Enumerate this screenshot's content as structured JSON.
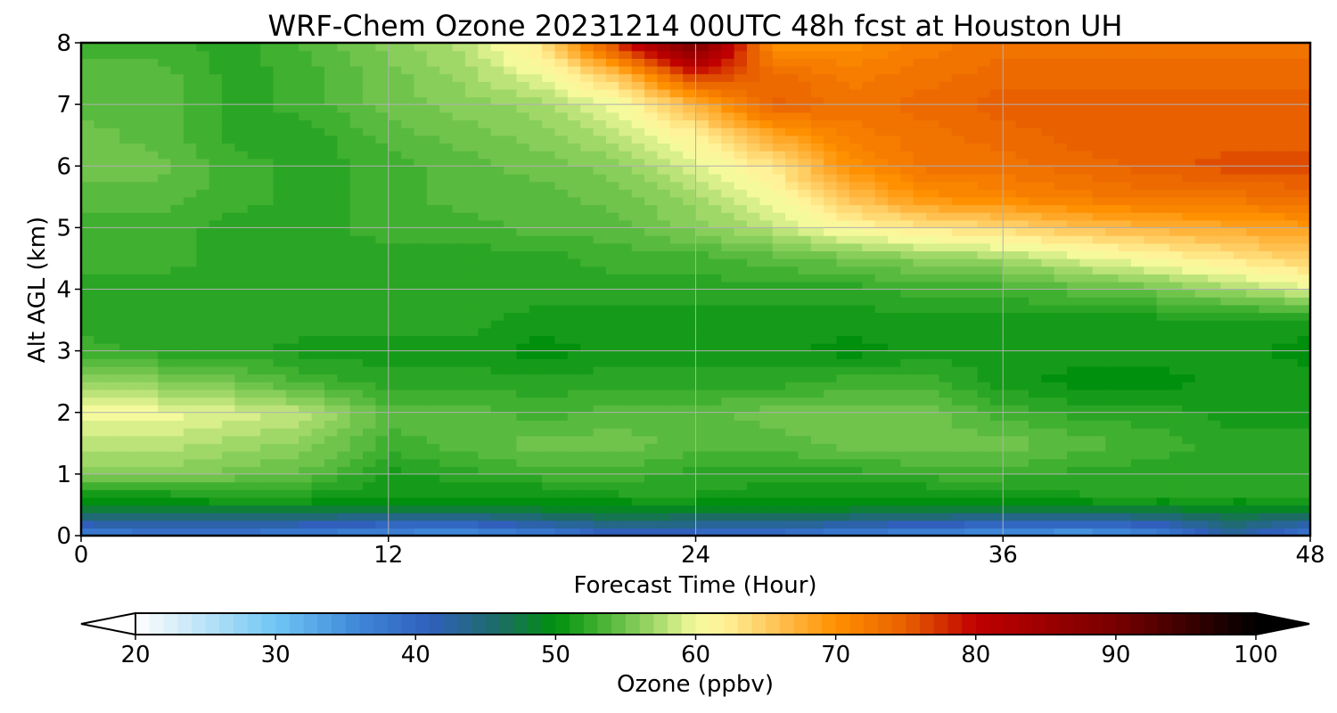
{
  "chart_data": {
    "type": "heatmap",
    "title": "WRF-Chem Ozone  20231214 00UTC 48h fcst at Houston UH",
    "xlabel": "Forecast Time (Hour)",
    "ylabel": "Alt AGL (km)",
    "xlim": [
      0,
      48
    ],
    "ylim": [
      0,
      8
    ],
    "x_ticks": [
      "0",
      "12",
      "24",
      "36",
      "48"
    ],
    "y_ticks": [
      "0",
      "1",
      "2",
      "3",
      "4",
      "5",
      "6",
      "7",
      "8"
    ],
    "grid": true,
    "x": [
      0,
      3,
      6,
      9,
      12,
      15,
      18,
      21,
      24,
      27,
      30,
      33,
      36,
      39,
      42,
      45,
      48
    ],
    "y": [
      0,
      0.25,
      0.5,
      0.75,
      1,
      1.5,
      2,
      2.5,
      3,
      3.5,
      4,
      4.5,
      5,
      5.5,
      6,
      6.5,
      7,
      7.5,
      8
    ],
    "z": [
      [
        36,
        37,
        37,
        36,
        35,
        34,
        36,
        40,
        39,
        38,
        36,
        35,
        34,
        33,
        35,
        42,
        37
      ],
      [
        43,
        44,
        44,
        43,
        42,
        42,
        44,
        46,
        45,
        45,
        44,
        43,
        42,
        42,
        43,
        46,
        44
      ],
      [
        49,
        49,
        50,
        50,
        50,
        50,
        50,
        50,
        50,
        50,
        50,
        50,
        50,
        50,
        50,
        50,
        50
      ],
      [
        52,
        52,
        53,
        52,
        51,
        51,
        51,
        52,
        52,
        51,
        51,
        51,
        51,
        52,
        52,
        52,
        52
      ],
      [
        56,
        56,
        55,
        54,
        51,
        52,
        53,
        53,
        52,
        52,
        52,
        53,
        53,
        52,
        52,
        52,
        52
      ],
      [
        58,
        58,
        57,
        56,
        53,
        54,
        55,
        55,
        54,
        54,
        55,
        55,
        55,
        54,
        53,
        52,
        52
      ],
      [
        60,
        60,
        59,
        58,
        54,
        54,
        53,
        54,
        54,
        55,
        55,
        55,
        53,
        52,
        52,
        51,
        51
      ],
      [
        57,
        56,
        55,
        53,
        52,
        52,
        52,
        52,
        52,
        52,
        53,
        53,
        51,
        50,
        50,
        51,
        51
      ],
      [
        53,
        52,
        52,
        51,
        51,
        51,
        50,
        51,
        51,
        51,
        50,
        51,
        51,
        51,
        51,
        51,
        50
      ],
      [
        52,
        52,
        52,
        52,
        52,
        52,
        51,
        51,
        51,
        51,
        51,
        51,
        51,
        51,
        51,
        51,
        51
      ],
      [
        52,
        52,
        52,
        52,
        52,
        52,
        52,
        52,
        52,
        52,
        52,
        53,
        53,
        54,
        55,
        57,
        59
      ],
      [
        53,
        53,
        52,
        52,
        52,
        52,
        52,
        53,
        53,
        54,
        55,
        56,
        57,
        59,
        61,
        63,
        65
      ],
      [
        53,
        53,
        52,
        52,
        53,
        53,
        54,
        54,
        56,
        58,
        61,
        63,
        64,
        66,
        67,
        68,
        69
      ],
      [
        54,
        54,
        53,
        52,
        53,
        54,
        54,
        55,
        57,
        60,
        66,
        70,
        71,
        72,
        73,
        73,
        74
      ],
      [
        55,
        55,
        53,
        52,
        53,
        54,
        55,
        56,
        59,
        63,
        70,
        73,
        73,
        74,
        75,
        76,
        76
      ],
      [
        55,
        54,
        52,
        52,
        54,
        55,
        56,
        58,
        62,
        68,
        72,
        73,
        74,
        75,
        75,
        75,
        75
      ],
      [
        54,
        54,
        52,
        53,
        55,
        56,
        57,
        60,
        67,
        75,
        73,
        74,
        75,
        75,
        75,
        75,
        75
      ],
      [
        54,
        54,
        52,
        53,
        55,
        57,
        60,
        66,
        78,
        74,
        72,
        73,
        74,
        74,
        74,
        74,
        74
      ],
      [
        53,
        53,
        52,
        54,
        56,
        58,
        63,
        78,
        90,
        70,
        70,
        72,
        73,
        73,
        73,
        73,
        73
      ]
    ],
    "colorbar": {
      "label": "Ozone  (ppbv)",
      "min": 20,
      "max": 100,
      "extend": "both",
      "ticks": [
        "20",
        "30",
        "40",
        "50",
        "60",
        "70",
        "80",
        "90",
        "100"
      ],
      "stops": [
        {
          "v": 20,
          "c": "#ffffff"
        },
        {
          "v": 24,
          "c": "#c8e8f8"
        },
        {
          "v": 30,
          "c": "#6ec6f4"
        },
        {
          "v": 36,
          "c": "#3e86d8"
        },
        {
          "v": 41,
          "c": "#3060bc"
        },
        {
          "v": 46,
          "c": "#1c6c64"
        },
        {
          "v": 50,
          "c": "#00900e"
        },
        {
          "v": 53,
          "c": "#40b030"
        },
        {
          "v": 57,
          "c": "#a0d868"
        },
        {
          "v": 60,
          "c": "#f4fa9c"
        },
        {
          "v": 62,
          "c": "#fff298"
        },
        {
          "v": 66,
          "c": "#ffc050"
        },
        {
          "v": 70,
          "c": "#ff9000"
        },
        {
          "v": 75,
          "c": "#e86000"
        },
        {
          "v": 80,
          "c": "#c00000"
        },
        {
          "v": 90,
          "c": "#780000"
        },
        {
          "v": 100,
          "c": "#000000"
        }
      ]
    }
  }
}
